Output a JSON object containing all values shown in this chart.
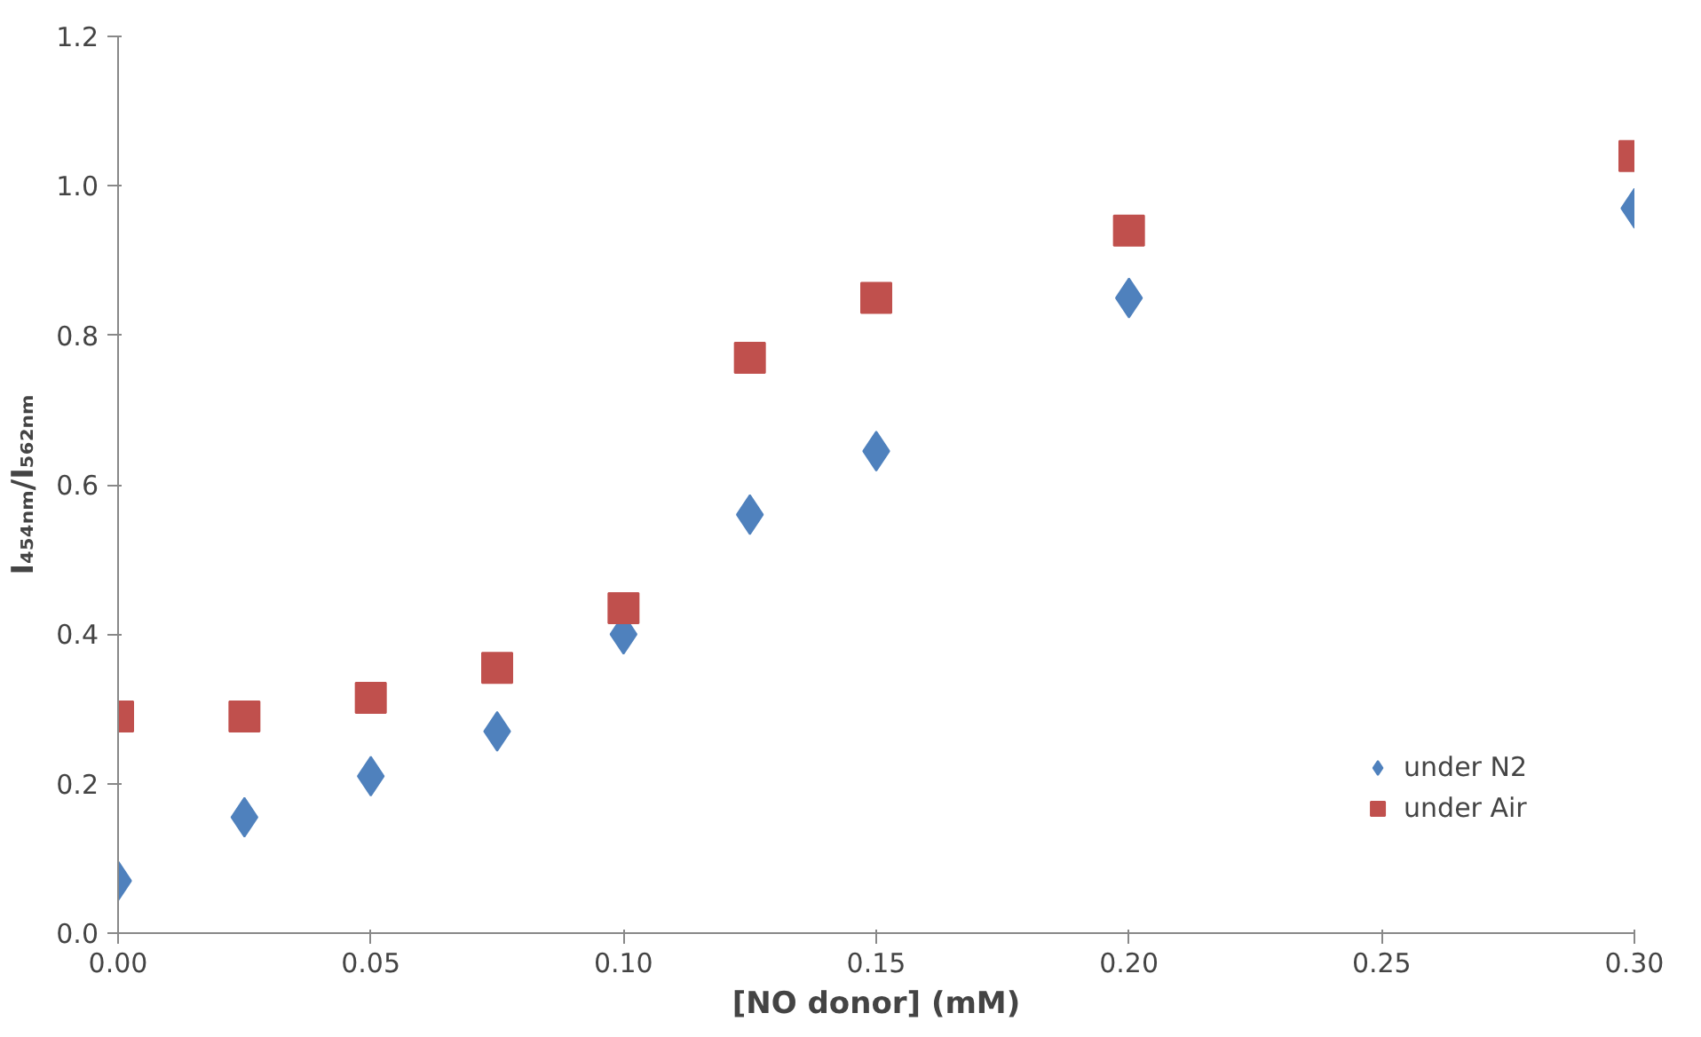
{
  "chart_data": {
    "type": "scatter",
    "xlabel": "[NO donor] (mM)",
    "ylabel": "I₄₅₄ₙₘ/I₅₆₂ₙₘ",
    "x": [
      0,
      0.025,
      0.05,
      0.075,
      0.1,
      0.125,
      0.15,
      0.2,
      0.3
    ],
    "series": [
      {
        "name": "under N2",
        "color": "#4f81bd",
        "marker": "diamond",
        "values": [
          0.07,
          0.155,
          0.21,
          0.27,
          0.4,
          0.56,
          0.645,
          0.85,
          0.97
        ]
      },
      {
        "name": "under Air",
        "color": "#c0504d",
        "marker": "square",
        "values": [
          0.29,
          0.29,
          0.315,
          0.355,
          0.435,
          0.77,
          0.85,
          0.94,
          1.04
        ]
      }
    ],
    "xlim": [
      0,
      0.3
    ],
    "ylim": [
      0,
      1.2
    ],
    "xticks": [
      {
        "value": 0,
        "label": "0.00"
      },
      {
        "value": 0.05,
        "label": "0.05"
      },
      {
        "value": 0.1,
        "label": "0.10"
      },
      {
        "value": 0.15,
        "label": "0.15"
      },
      {
        "value": 0.2,
        "label": "0.20"
      },
      {
        "value": 0.25,
        "label": "0.25"
      },
      {
        "value": 0.3,
        "label": "0.30"
      }
    ],
    "yticks": [
      {
        "value": 0,
        "label": "0.0"
      },
      {
        "value": 0.2,
        "label": "0.2"
      },
      {
        "value": 0.4,
        "label": "0.4"
      },
      {
        "value": 0.6,
        "label": "0.6"
      },
      {
        "value": 0.8,
        "label": "0.8"
      },
      {
        "value": 1.0,
        "label": "1.0"
      },
      {
        "value": 1.2,
        "label": "1.2"
      }
    ],
    "grid": false,
    "legend": "bottom right"
  }
}
